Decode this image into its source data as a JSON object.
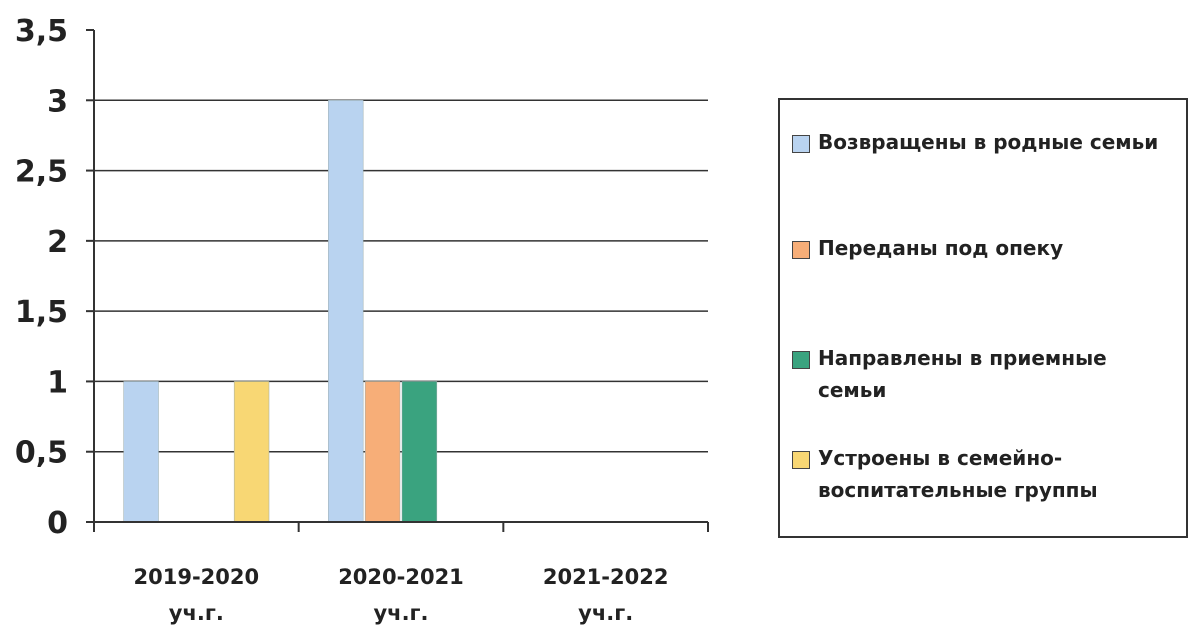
{
  "chart_data": {
    "type": "bar",
    "title": "",
    "xlabel": "",
    "ylabel": "",
    "ylim": [
      0,
      3.5
    ],
    "yticks": [
      "0",
      "0,5",
      "1",
      "1,5",
      "2",
      "2,5",
      "3",
      "3,5"
    ],
    "grid": true,
    "legend_position": "right",
    "categories": [
      {
        "line1": "2019-2020",
        "line2": "уч.г."
      },
      {
        "line1": "2020-2021",
        "line2": "уч.г."
      },
      {
        "line1": "2021-2022",
        "line2": "уч.г."
      }
    ],
    "series": [
      {
        "name": "Возвращены в родные семьи",
        "color": "#b9d3f0",
        "values": [
          1,
          3,
          0
        ]
      },
      {
        "name": "Переданы под опеку",
        "color": "#f7ae78",
        "values": [
          0,
          1,
          0
        ]
      },
      {
        "name": "Направлены в приемные семьи",
        "color": "#3aa37f",
        "values": [
          0,
          1,
          0
        ]
      },
      {
        "name": "Устроены в семейно-воспитательные группы",
        "color": "#f8d774",
        "values": [
          1,
          0,
          0
        ]
      }
    ]
  }
}
